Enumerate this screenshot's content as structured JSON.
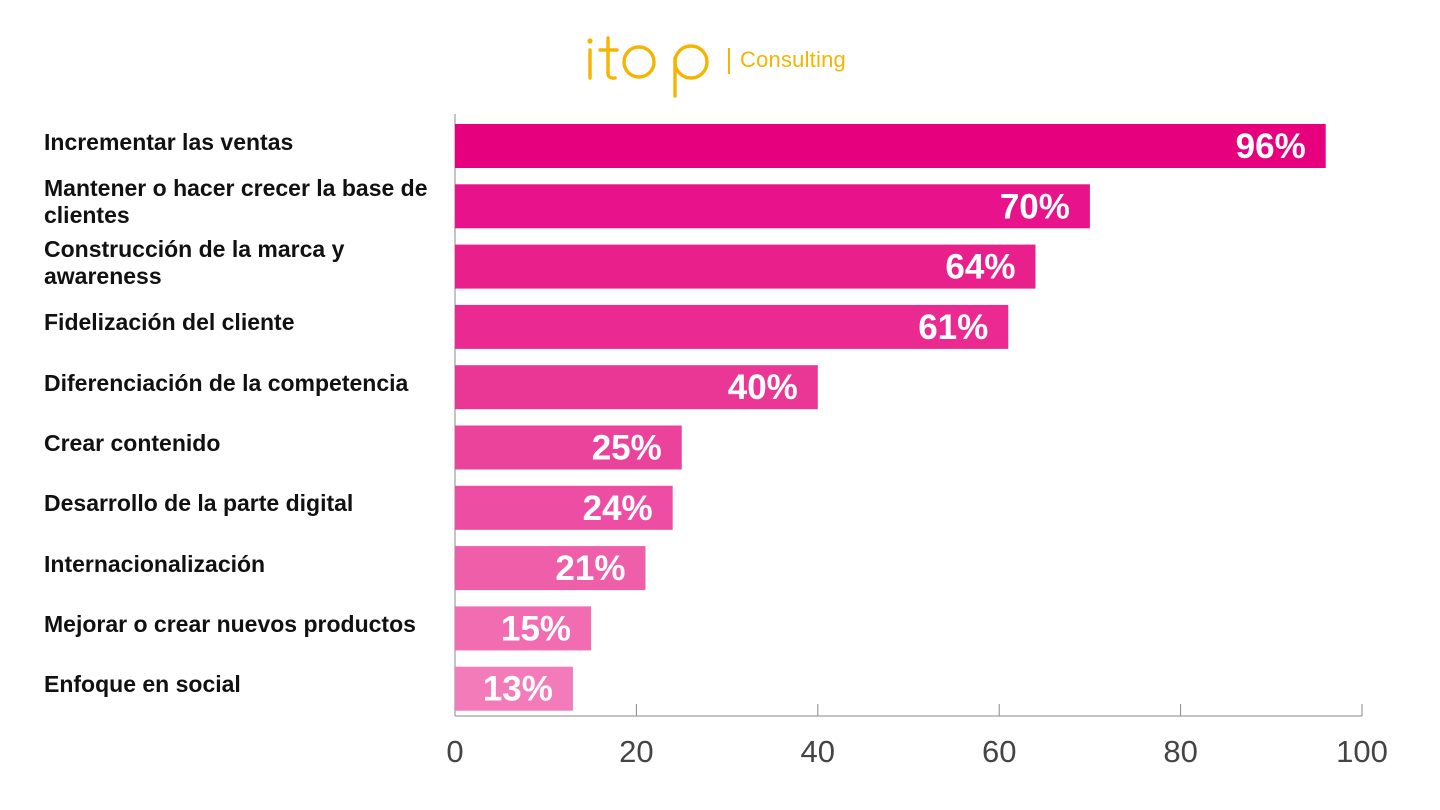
{
  "brand": {
    "logo_text": "itop",
    "subtitle": "Consulting",
    "color": "#f5b400"
  },
  "chart_data": {
    "type": "bar",
    "orientation": "horizontal",
    "categories": [
      "Incrementar las ventas",
      "Mantener o hacer crecer la base de clientes",
      "Construcción de la marca y awareness",
      "Fidelización del cliente",
      "Diferenciación de la competencia",
      "Crear contenido",
      "Desarrollo de la parte digital",
      "Internacionalización",
      "Mejorar o crear nuevos productos",
      "Enfoque en social"
    ],
    "values": [
      96,
      70,
      64,
      61,
      40,
      25,
      24,
      21,
      15,
      13
    ],
    "data_labels": [
      "96%",
      "70%",
      "64%",
      "61%",
      "40%",
      "25%",
      "24%",
      "21%",
      "15%",
      "13%"
    ],
    "xlim": [
      0,
      100
    ],
    "xticks": [
      0,
      20,
      40,
      60,
      80,
      100
    ],
    "xtick_labels": [
      "0",
      "20",
      "40",
      "60",
      "80",
      "100"
    ],
    "xlabel": "",
    "ylabel": "",
    "grid": false,
    "bar_colors": [
      "#e6007e",
      "#e8128a",
      "#e91f8b",
      "#ea2a91",
      "#ea3796",
      "#eb429b",
      "#ed4ea3",
      "#ef5ea9",
      "#f16cb1",
      "#f37bb9"
    ],
    "label_color": "#ffffff",
    "axis_color": "#888888"
  }
}
